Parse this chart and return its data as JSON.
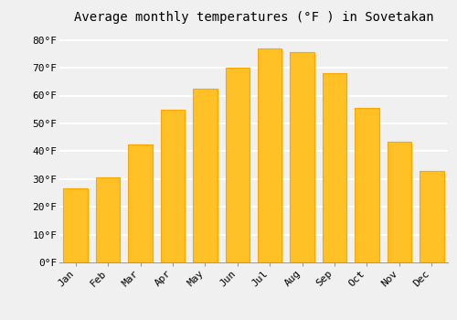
{
  "title": "Average monthly temperatures (°F ) in Sovetakan",
  "months": [
    "Jan",
    "Feb",
    "Mar",
    "Apr",
    "May",
    "Jun",
    "Jul",
    "Aug",
    "Sep",
    "Oct",
    "Nov",
    "Dec"
  ],
  "values": [
    26.5,
    30.5,
    42.5,
    55.0,
    62.5,
    70.0,
    77.0,
    75.5,
    68.0,
    55.5,
    43.5,
    33.0
  ],
  "bar_color_main": "#FFC125",
  "bar_color_edge": "#FFA500",
  "ylim": [
    0,
    84
  ],
  "yticks": [
    0,
    10,
    20,
    30,
    40,
    50,
    60,
    70,
    80
  ],
  "ytick_labels": [
    "0°F",
    "10°F",
    "20°F",
    "30°F",
    "40°F",
    "50°F",
    "60°F",
    "70°F",
    "80°F"
  ],
  "background_color": "#F0F0F0",
  "grid_color": "#FFFFFF",
  "title_fontsize": 10,
  "tick_fontsize": 8,
  "font_family": "monospace"
}
